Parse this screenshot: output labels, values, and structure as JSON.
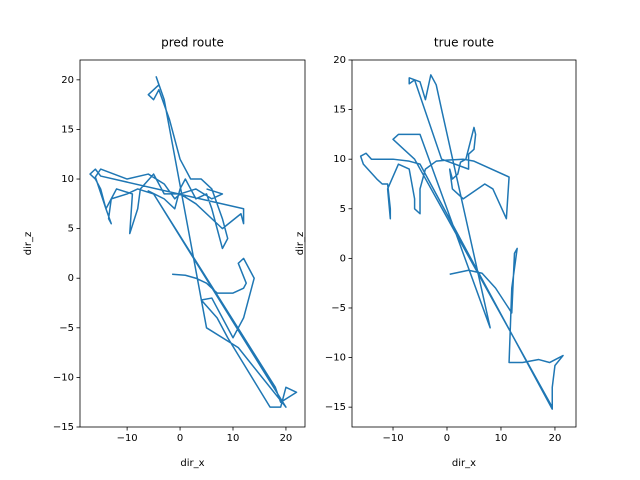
{
  "chart_data": [
    {
      "type": "line",
      "title": "pred route",
      "x_label": "dir_x",
      "y_label": "dir_z",
      "color": "#1f77b4",
      "xlim": [
        -18.9,
        23.6
      ],
      "ylim": [
        -15,
        22
      ],
      "xticks": [
        {
          "value": -10,
          "label": "−10"
        },
        0,
        10,
        20
      ],
      "yticks": [
        {
          "value": -15,
          "label": "−15"
        },
        {
          "value": -10,
          "label": "−10"
        },
        {
          "value": -5,
          "label": "−5"
        },
        0,
        5,
        10,
        15,
        20
      ],
      "x": [
        -1.5,
        1,
        3,
        5,
        7,
        10,
        12,
        12.5,
        11,
        12,
        14,
        12,
        11,
        10,
        6,
        4,
        7,
        9,
        17,
        19,
        20,
        22,
        19,
        18,
        -5,
        -6,
        -3,
        -1,
        0,
        1,
        2,
        3,
        5,
        6,
        7,
        8,
        9,
        8,
        6,
        4,
        2,
        0,
        -2,
        -4,
        -5,
        -6,
        -4,
        -4.5,
        -3,
        5,
        11,
        20,
        -5,
        -8,
        -10,
        -13,
        -14,
        -15,
        -16,
        -17,
        -16,
        -15,
        12,
        12,
        11.5,
        8,
        3,
        0,
        -3,
        -5,
        -7.5,
        -8,
        -9.5,
        -9,
        -12,
        -13,
        -13.5,
        -13,
        -14,
        -16,
        -15,
        -10,
        -6,
        -3,
        -1,
        0,
        3,
        6,
        8,
        5
      ],
      "values": [
        0.4,
        0.3,
        0,
        -0.5,
        -1.5,
        -1.5,
        -1,
        -0.5,
        1.5,
        2,
        0,
        -4,
        -5,
        -6,
        -2,
        -2.2,
        -4,
        -6,
        -13,
        -13,
        -11,
        -11.5,
        -12.5,
        -11,
        8.5,
        8.8,
        8,
        7,
        9,
        10,
        9,
        8,
        8.5,
        7,
        5,
        3,
        4,
        6,
        9,
        10,
        10,
        12,
        16,
        19,
        18,
        18.5,
        19.5,
        20.3,
        18,
        -5,
        -7,
        -13,
        8.5,
        9,
        8.5,
        8,
        7,
        9,
        10,
        10.5,
        11,
        10.3,
        7,
        5.5,
        6.5,
        5,
        7.5,
        8.5,
        8.5,
        10.5,
        9,
        7,
        4.5,
        8.5,
        9,
        8,
        6,
        5.5,
        7,
        10.2,
        11,
        10,
        10.5,
        9.5,
        8,
        8.5,
        9,
        8,
        8.5,
        9
      ]
    },
    {
      "type": "line",
      "title": "true route",
      "x_label": "dir_x",
      "y_label": "dir_z",
      "color": "#1f77b4",
      "xlim": [
        -17.6,
        23.9
      ],
      "ylim": [
        -17,
        20
      ],
      "xticks": [
        {
          "value": -10,
          "label": "−10"
        },
        0,
        10,
        20
      ],
      "yticks": [
        {
          "value": -15,
          "label": "−15"
        },
        {
          "value": -10,
          "label": "−10"
        },
        {
          "value": -5,
          "label": "−5"
        },
        0,
        5,
        10,
        15,
        20
      ],
      "x": [
        0.5,
        4,
        6.5,
        9,
        12,
        12.5,
        13,
        12,
        11.5,
        14,
        17,
        19,
        21.5,
        20,
        19.5,
        19.5,
        -5,
        -7,
        -10,
        -12,
        -14,
        -15,
        -16,
        -15.5,
        -13,
        -12,
        -11,
        -10.5,
        -10.5,
        -11,
        -9,
        -7,
        -6,
        -6,
        -5,
        -5,
        -4,
        -2,
        0,
        3,
        5,
        11.5,
        11,
        8.5,
        7,
        3,
        1,
        0.5,
        1,
        2,
        2.5,
        3.5,
        5,
        5.3,
        5,
        4,
        4,
        -1,
        -6,
        -7,
        -7,
        -5,
        -4,
        -3,
        -2,
        -1,
        8,
        -5,
        -9,
        -10,
        -8,
        -6,
        19.5
      ],
      "values": [
        -1.6,
        -1.2,
        -1.5,
        -3,
        -5.5,
        0.5,
        1,
        -3,
        -10.5,
        -10.5,
        -10.2,
        -10.5,
        -9.8,
        -10.8,
        -13,
        -15.2,
        9.5,
        9.8,
        10,
        10,
        10,
        10.6,
        10.3,
        9.5,
        8,
        7.5,
        7.5,
        5,
        4,
        7,
        9.5,
        9,
        6,
        5,
        4.5,
        7,
        9,
        9.8,
        9.9,
        10,
        9.8,
        8.2,
        4,
        7,
        7.5,
        6,
        7,
        9,
        8,
        8.5,
        9.7,
        10,
        13.2,
        12.5,
        11,
        10.5,
        9,
        10,
        18,
        17.6,
        18.2,
        17.8,
        16,
        18.5,
        17.5,
        15,
        -7,
        12.5,
        12.5,
        12,
        11,
        10,
        -15
      ]
    }
  ]
}
